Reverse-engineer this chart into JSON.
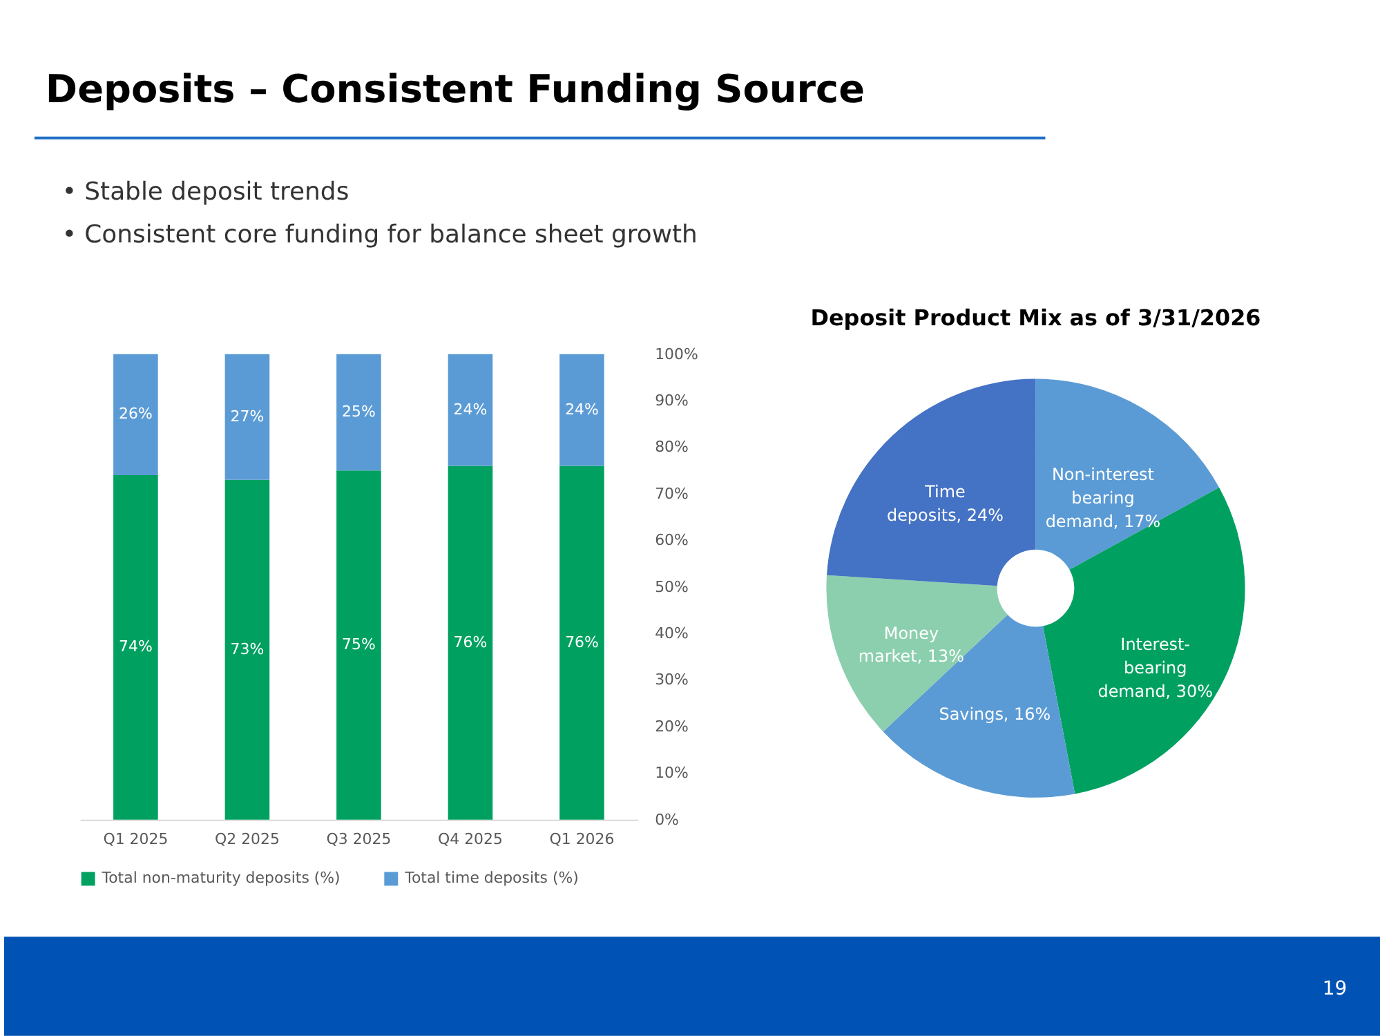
{
  "chart_data": [
    {
      "type": "bar",
      "title": "Deposits – Consistent Funding Source",
      "annotations": [
        "•  Stable deposit trends",
        "•  Consistent core funding for balance sheet growth",
        "19"
      ],
      "categories": [
        "Q1 2025",
        "Q2 2025",
        "Q3 2025",
        "Q4 2025",
        "Q1 2026"
      ],
      "stacked": true,
      "series": [
        {
          "name": "Total non-maturity deposits (%)",
          "color": "#00a160",
          "values": [
            74,
            73,
            75,
            76,
            76
          ],
          "value_labels": [
            "74%",
            "73%",
            "75%",
            "76%",
            "76%"
          ]
        },
        {
          "name": "Total time deposits (%)",
          "color": "#5b9bd5",
          "values": [
            26,
            27,
            25,
            24,
            24
          ],
          "value_labels": [
            "26%",
            "27%",
            "25%",
            "24%",
            "24%"
          ]
        }
      ],
      "ylim": [
        0,
        100
      ],
      "yticks": [
        {
          "value": 0,
          "label": "0%"
        },
        {
          "value": 10,
          "label": "10%"
        },
        {
          "value": 20,
          "label": "20%"
        },
        {
          "value": 30,
          "label": "30%"
        },
        {
          "value": 40,
          "label": "40%"
        },
        {
          "value": 50,
          "label": "50%"
        },
        {
          "value": 60,
          "label": "60%"
        },
        {
          "value": 70,
          "label": "70%"
        },
        {
          "value": 80,
          "label": "80%"
        },
        {
          "value": 90,
          "label": "90%"
        },
        {
          "value": 100,
          "label": "100%"
        }
      ],
      "grid": false,
      "legend": "bottom"
    },
    {
      "type": "donut",
      "title": "Deposit Product Mix as of 3/31/2026",
      "categories": [
        "Non-interest bearing demand",
        "Interest-bearing demand",
        "Savings",
        "Money market",
        "Time deposits"
      ],
      "values": [
        17,
        30,
        16,
        13,
        24
      ],
      "colors": [
        "#5b9bd5",
        "#00a160",
        "#5b9bd5",
        "#8ccfae",
        "#4472c4"
      ],
      "value_labels": [
        "17%",
        "30%",
        "16%",
        "13%",
        "24%"
      ],
      "legend": false
    }
  ]
}
